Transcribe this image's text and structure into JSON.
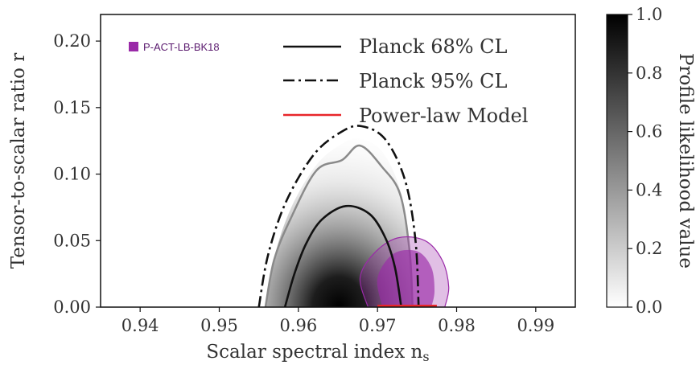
{
  "chart_data": {
    "type": "heatmap",
    "xlabel": "Scalar spectral index n",
    "xlabel_sub": "s",
    "ylabel": "Tensor-to-scalar ratio r",
    "xlim": [
      0.935,
      0.995
    ],
    "ylim": [
      0.0,
      0.22
    ],
    "x_ticks": [
      0.94,
      0.95,
      0.96,
      0.97,
      0.98,
      0.99
    ],
    "x_tick_labels": [
      "0.94",
      "0.95",
      "0.96",
      "0.97",
      "0.98",
      "0.99"
    ],
    "y_ticks": [
      0.0,
      0.05,
      0.1,
      0.15,
      0.2
    ],
    "y_tick_labels": [
      "0.00",
      "0.05",
      "0.10",
      "0.15",
      "0.20"
    ],
    "colorbar": {
      "label": "Profile likelihood value",
      "range": [
        0.0,
        1.0
      ],
      "ticks": [
        0.0,
        0.2,
        0.4,
        0.6,
        0.8,
        1.0
      ],
      "tick_labels": [
        "0.0",
        "0.2",
        "0.4",
        "0.6",
        "0.8",
        "1.0"
      ]
    },
    "likelihood_peak": {
      "ns": 0.9655,
      "r": 0.0
    },
    "series": [
      {
        "name": "Planck 68% CL",
        "style": "solid",
        "color": "#111111",
        "points": [
          [
            0.9583,
            0.0
          ],
          [
            0.9595,
            0.025
          ],
          [
            0.961,
            0.048
          ],
          [
            0.963,
            0.066
          ],
          [
            0.966,
            0.076
          ],
          [
            0.969,
            0.07
          ],
          [
            0.971,
            0.052
          ],
          [
            0.9722,
            0.03
          ],
          [
            0.973,
            0.0
          ]
        ]
      },
      {
        "name": "Planck 95% CL",
        "style": "dashdot",
        "color": "#111111",
        "points": [
          [
            0.955,
            0.0
          ],
          [
            0.9562,
            0.04
          ],
          [
            0.9585,
            0.08
          ],
          [
            0.962,
            0.115
          ],
          [
            0.9655,
            0.132
          ],
          [
            0.968,
            0.136
          ],
          [
            0.971,
            0.126
          ],
          [
            0.9735,
            0.095
          ],
          [
            0.9748,
            0.05
          ],
          [
            0.9752,
            0.0
          ]
        ]
      },
      {
        "name": "Power-law Model",
        "style": "solid",
        "color": "#e8262a",
        "points": [
          [
            0.97,
            0.0
          ],
          [
            0.9775,
            0.0
          ]
        ]
      },
      {
        "name": "P-ACT-LB-BK18",
        "style": "filled",
        "color": "#9a2aa8",
        "center": [
          0.974,
          0.025
        ],
        "outer_region": [
          [
            0.9688,
            0.0
          ],
          [
            0.9678,
            0.022
          ],
          [
            0.9695,
            0.04
          ],
          [
            0.9725,
            0.052
          ],
          [
            0.976,
            0.05
          ],
          [
            0.9782,
            0.035
          ],
          [
            0.979,
            0.015
          ],
          [
            0.9785,
            0.0
          ]
        ],
        "inner_region": [
          [
            0.9706,
            0.0
          ],
          [
            0.97,
            0.022
          ],
          [
            0.972,
            0.04
          ],
          [
            0.975,
            0.042
          ],
          [
            0.9768,
            0.03
          ],
          [
            0.9772,
            0.012
          ],
          [
            0.9768,
            0.0
          ]
        ]
      }
    ],
    "legend_placement": "top-right",
    "grid": false
  }
}
